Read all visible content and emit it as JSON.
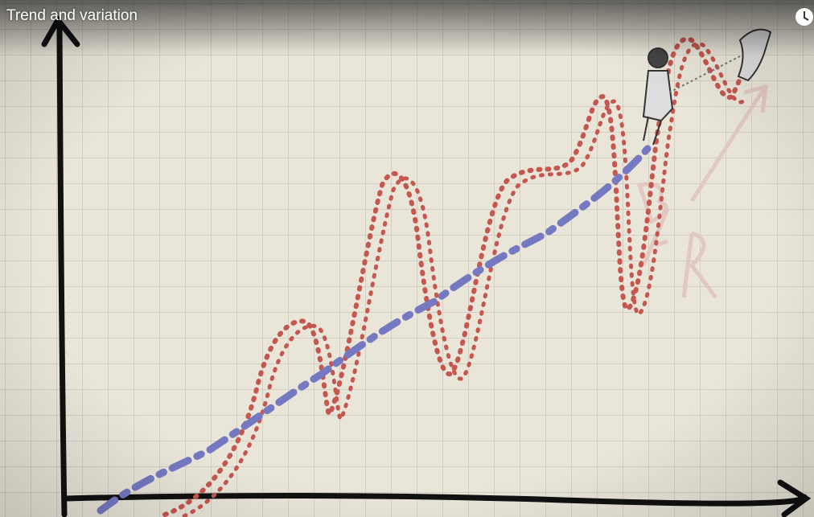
{
  "video": {
    "title": "Trend and variation"
  }
}
